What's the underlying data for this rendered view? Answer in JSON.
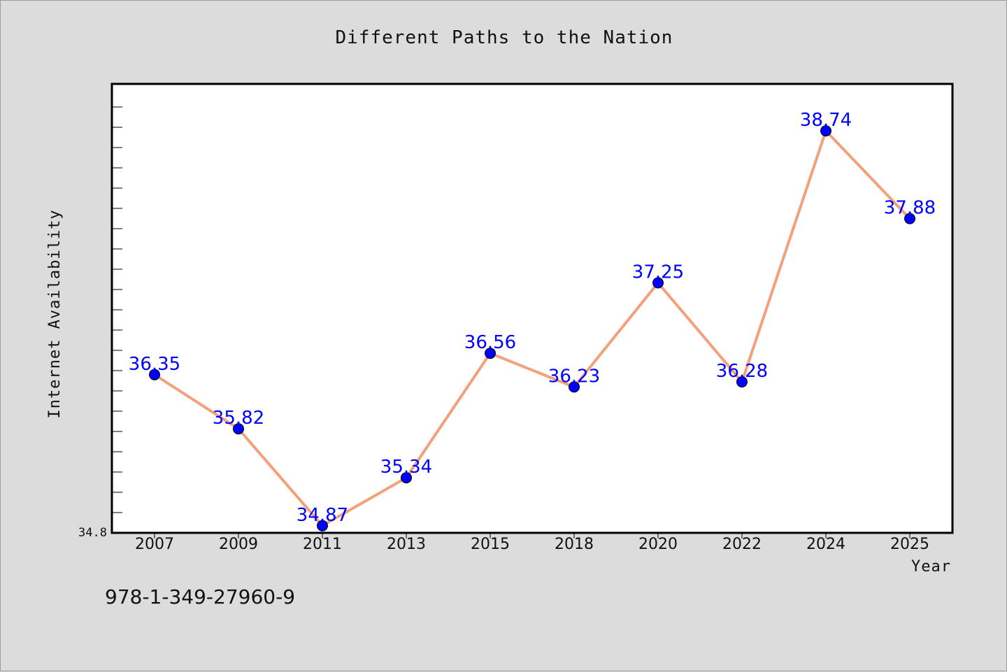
{
  "colors": {
    "background": "#dcdcdc",
    "plot_background": "#ffffff",
    "line": "#f4a07a",
    "marker": "#0000ff",
    "data_label": "#0000ff"
  },
  "isbn": "978-1-349-27960-9",
  "chart_data": {
    "type": "line",
    "title": "Different Paths to the Nation",
    "xlabel": "Year",
    "ylabel": "Internet Availability",
    "categories": [
      "2007",
      "2009",
      "2011",
      "2013",
      "2015",
      "2018",
      "2020",
      "2022",
      "2024",
      "2025"
    ],
    "series": [
      {
        "values": [
          36.35,
          35.82,
          34.87,
          35.34,
          36.56,
          36.23,
          37.25,
          36.28,
          38.74,
          37.88
        ],
        "labels": [
          "36.35",
          "35.82",
          "34.87",
          "35.34",
          "36.56",
          "36.23",
          "37.25",
          "36.28",
          "38.74",
          "37.88"
        ]
      }
    ],
    "ylim": [
      34.8,
      39.2
    ],
    "y_tick_label": "34.8",
    "grid": false,
    "legend": "none"
  }
}
